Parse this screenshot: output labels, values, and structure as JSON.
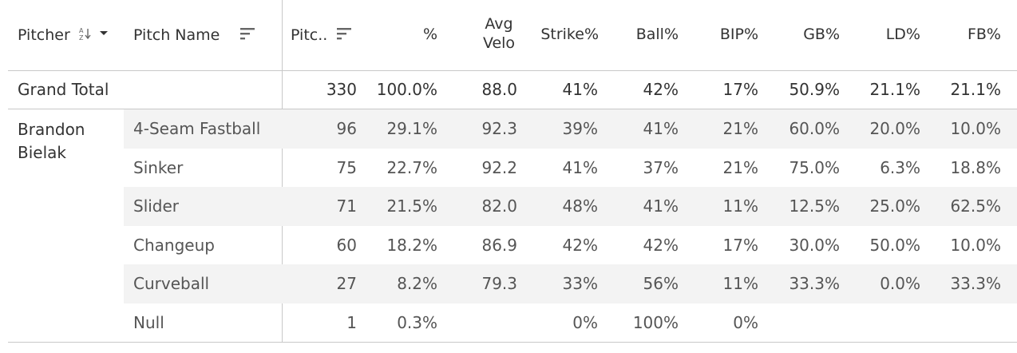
{
  "columns": {
    "pitcher": "Pitcher",
    "pitch_name": "Pitch Name",
    "pitches": "Pitc..",
    "pct": "%",
    "avg_velo_line1": "Avg",
    "avg_velo_line2": "Velo",
    "strike": "Strike%",
    "ball": "Ball%",
    "bip": "BIP%",
    "gb": "GB%",
    "ld": "LD%",
    "fb": "FB%"
  },
  "grand_total": {
    "label": "Grand Total",
    "pitches": "330",
    "pct": "100.0%",
    "avg_velo": "88.0",
    "strike": "41%",
    "ball": "42%",
    "bip": "17%",
    "gb": "50.9%",
    "ld": "21.1%",
    "fb": "21.1%"
  },
  "pitcher": {
    "name_line1": "Brandon",
    "name_line2": "Bielak"
  },
  "rows": [
    {
      "pitch_name": "4-Seam Fastball",
      "pitches": "96",
      "pct": "29.1%",
      "avg_velo": "92.3",
      "strike": "39%",
      "ball": "41%",
      "bip": "21%",
      "gb": "60.0%",
      "ld": "20.0%",
      "fb": "10.0%"
    },
    {
      "pitch_name": "Sinker",
      "pitches": "75",
      "pct": "22.7%",
      "avg_velo": "92.2",
      "strike": "41%",
      "ball": "37%",
      "bip": "21%",
      "gb": "75.0%",
      "ld": "6.3%",
      "fb": "18.8%"
    },
    {
      "pitch_name": "Slider",
      "pitches": "71",
      "pct": "21.5%",
      "avg_velo": "82.0",
      "strike": "48%",
      "ball": "41%",
      "bip": "11%",
      "gb": "12.5%",
      "ld": "25.0%",
      "fb": "62.5%"
    },
    {
      "pitch_name": "Changeup",
      "pitches": "60",
      "pct": "18.2%",
      "avg_velo": "86.9",
      "strike": "42%",
      "ball": "42%",
      "bip": "17%",
      "gb": "30.0%",
      "ld": "50.0%",
      "fb": "10.0%"
    },
    {
      "pitch_name": "Curveball",
      "pitches": "27",
      "pct": "8.2%",
      "avg_velo": "79.3",
      "strike": "33%",
      "ball": "56%",
      "bip": "11%",
      "gb": "33.3%",
      "ld": "0.0%",
      "fb": "33.3%"
    },
    {
      "pitch_name": "Null",
      "pitches": "1",
      "pct": "0.3%",
      "avg_velo": "",
      "strike": "0%",
      "ball": "100%",
      "bip": "0%",
      "gb": "",
      "ld": "",
      "fb": ""
    }
  ],
  "icons": {
    "az_sort": "sort-alphabetical-icon",
    "dropdown": "dropdown-caret-icon",
    "sort_desc": "sort-descending-icon"
  },
  "colors": {
    "stripe": "#f3f3f3",
    "divider": "#c8c8c8",
    "text_dark": "#333333",
    "text_light": "#555555"
  }
}
